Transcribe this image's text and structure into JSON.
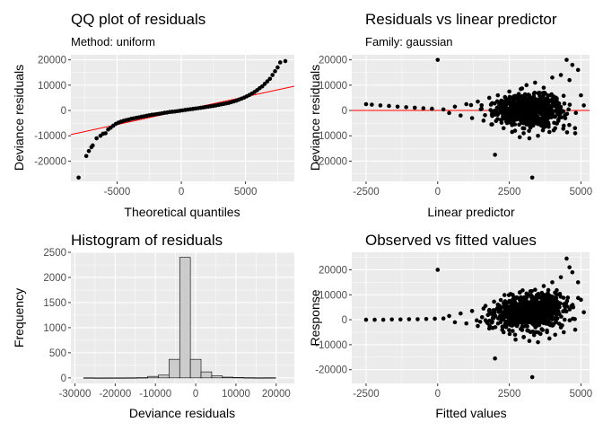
{
  "chart_data": [
    {
      "id": "qq",
      "type": "scatter",
      "title": "QQ plot of residuals",
      "subtitle": "Method: uniform",
      "xlabel": "Theoretical quantiles",
      "ylabel": "Deviance residuals",
      "xlim": [
        -8600,
        8800
      ],
      "ylim": [
        -28000,
        22000
      ],
      "xticks": [
        -5000,
        0,
        5000
      ],
      "xtick_labels": [
        "-5000",
        "0",
        "5000"
      ],
      "xminor": [
        -7500,
        -2500,
        2500,
        7500
      ],
      "yticks": [
        -20000,
        -10000,
        0,
        10000,
        20000
      ],
      "ytick_labels": [
        "-20000",
        "-10000",
        "0",
        "10000",
        "20000"
      ],
      "yminor": [
        -25000,
        -15000,
        -5000,
        5000,
        15000
      ],
      "grid": true,
      "reference_line": {
        "color": "#ff0000",
        "points": [
          [
            -8600,
            -9500
          ],
          [
            8800,
            9600
          ]
        ]
      },
      "points": [
        [
          -8000,
          -26500
        ],
        [
          -7400,
          -18000
        ],
        [
          -7200,
          -16000
        ],
        [
          -7000,
          -14500
        ],
        [
          -6900,
          -13800
        ],
        [
          -6600,
          -11000
        ],
        [
          -6300,
          -10000
        ],
        [
          -6100,
          -9200
        ],
        [
          -5900,
          -9000
        ],
        [
          -5700,
          -7500
        ],
        [
          -5500,
          -6800
        ],
        [
          -5300,
          -6000
        ],
        [
          -5100,
          -5300
        ],
        [
          -4900,
          -4800
        ],
        [
          -4700,
          -4400
        ],
        [
          -4500,
          -4100
        ],
        [
          -4300,
          -3800
        ],
        [
          -4100,
          -3600
        ],
        [
          -3900,
          -3300
        ],
        [
          -3700,
          -3100
        ],
        [
          -3500,
          -2900
        ],
        [
          -3300,
          -2700
        ],
        [
          -3100,
          -2500
        ],
        [
          -2900,
          -2300
        ],
        [
          -2700,
          -2100
        ],
        [
          -2500,
          -1900
        ],
        [
          -2300,
          -1700
        ],
        [
          -2100,
          -1600
        ],
        [
          -1900,
          -1400
        ],
        [
          -1700,
          -1300
        ],
        [
          -1500,
          -1100
        ],
        [
          -1300,
          -900
        ],
        [
          -1100,
          -800
        ],
        [
          -900,
          -600
        ],
        [
          -700,
          -500
        ],
        [
          -500,
          -400
        ],
        [
          -300,
          -250
        ],
        [
          -100,
          -100
        ],
        [
          100,
          50
        ],
        [
          300,
          200
        ],
        [
          500,
          350
        ],
        [
          700,
          500
        ],
        [
          900,
          600
        ],
        [
          1100,
          750
        ],
        [
          1300,
          900
        ],
        [
          1500,
          1050
        ],
        [
          1700,
          1200
        ],
        [
          1900,
          1350
        ],
        [
          2100,
          1500
        ],
        [
          2300,
          1650
        ],
        [
          2500,
          1800
        ],
        [
          2700,
          2000
        ],
        [
          2900,
          2200
        ],
        [
          3100,
          2400
        ],
        [
          3300,
          2600
        ],
        [
          3500,
          2800
        ],
        [
          3700,
          3000
        ],
        [
          3900,
          3300
        ],
        [
          4100,
          3600
        ],
        [
          4300,
          3900
        ],
        [
          4500,
          4300
        ],
        [
          4700,
          4700
        ],
        [
          4900,
          5100
        ],
        [
          5100,
          5600
        ],
        [
          5300,
          6100
        ],
        [
          5500,
          6700
        ],
        [
          5700,
          7300
        ],
        [
          5900,
          8000
        ],
        [
          6100,
          8800
        ],
        [
          6300,
          9500
        ],
        [
          6500,
          10500
        ],
        [
          6700,
          11500
        ],
        [
          6900,
          12500
        ],
        [
          7100,
          14000
        ],
        [
          7300,
          15500
        ],
        [
          7500,
          17000
        ],
        [
          7700,
          19000
        ],
        [
          8100,
          19500
        ]
      ]
    },
    {
      "id": "resid-lp",
      "type": "scatter",
      "title": "Residuals vs linear predictor",
      "subtitle": "Family: gaussian",
      "xlabel": "Linear predictor",
      "ylabel": "Deviance residuals",
      "xlim": [
        -3000,
        5300
      ],
      "ylim": [
        -28000,
        22000
      ],
      "xticks": [
        -2500,
        0,
        2500,
        5000
      ],
      "xtick_labels": [
        "-2500",
        "0",
        "2500",
        "5000"
      ],
      "xminor": [
        -1250,
        1250,
        3750
      ],
      "yticks": [
        -20000,
        -10000,
        0,
        10000,
        20000
      ],
      "ytick_labels": [
        "-20000",
        "-10000",
        "0",
        "10000",
        "20000"
      ],
      "yminor": [
        -25000,
        -15000,
        -5000,
        5000,
        15000
      ],
      "grid": true,
      "reference_line": {
        "color": "#ff0000",
        "points": [
          [
            -3000,
            0
          ],
          [
            5300,
            0
          ]
        ]
      },
      "points": [
        [
          -2500,
          2500
        ],
        [
          -2300,
          2300
        ],
        [
          -2000,
          2000
        ],
        [
          -1700,
          1800
        ],
        [
          -1400,
          1500
        ],
        [
          -1100,
          1300
        ],
        [
          -800,
          1100
        ],
        [
          -500,
          900
        ],
        [
          -200,
          700
        ],
        [
          0,
          20000
        ],
        [
          200,
          400
        ],
        [
          400,
          -1000
        ],
        [
          600,
          1500
        ],
        [
          800,
          -2000
        ],
        [
          1000,
          2500
        ],
        [
          1200,
          -3000
        ],
        [
          1400,
          3500
        ],
        [
          1600,
          -4000
        ],
        [
          1800,
          5000
        ],
        [
          1900,
          -5500
        ],
        [
          2000,
          -17500
        ],
        [
          2100,
          6000
        ],
        [
          2300,
          -7000
        ],
        [
          2500,
          7500
        ],
        [
          2700,
          -8000
        ],
        [
          2900,
          8500
        ],
        [
          3000,
          -9000
        ],
        [
          3100,
          10000
        ],
        [
          3200,
          -11000
        ],
        [
          3300,
          -26500
        ],
        [
          3400,
          11000
        ],
        [
          3500,
          -10000
        ],
        [
          3700,
          9000
        ],
        [
          3900,
          -8500
        ],
        [
          4000,
          13000
        ],
        [
          4100,
          -7000
        ],
        [
          4300,
          14000
        ],
        [
          4400,
          -6000
        ],
        [
          4500,
          20000
        ],
        [
          4600,
          12000
        ],
        [
          4700,
          18000
        ],
        [
          4800,
          -9000
        ],
        [
          4900,
          16000
        ],
        [
          5000,
          6000
        ],
        [
          5100,
          2000
        ]
      ],
      "cloud": {
        "x_center": 3200,
        "x_spread": 1300,
        "y_spread": 4500,
        "count": 900
      }
    },
    {
      "id": "hist",
      "type": "bar",
      "title": "Histogram of residuals",
      "xlabel": "Deviance residuals",
      "ylabel": "Frequency",
      "xlim": [
        -31000,
        24500
      ],
      "ylim": [
        -110,
        2500
      ],
      "xticks": [
        -30000,
        -20000,
        -10000,
        0,
        10000,
        20000
      ],
      "xtick_labels": [
        "-30000",
        "-20000",
        "-10000",
        "0",
        "10000",
        "20000"
      ],
      "xminor": [
        -25000,
        -15000,
        -5000,
        5000,
        15000
      ],
      "yticks": [
        0,
        500,
        1000,
        1500,
        2000,
        2500
      ],
      "ytick_labels": [
        "0",
        "500",
        "1000",
        "1500",
        "2000",
        "2500"
      ],
      "yminor": [
        250,
        750,
        1250,
        1750,
        2250
      ],
      "grid": true,
      "bin_width": 2650,
      "bins": [
        {
          "x": -26500,
          "count": 2
        },
        {
          "x": -23850,
          "count": 0
        },
        {
          "x": -21200,
          "count": 1
        },
        {
          "x": -18550,
          "count": 1
        },
        {
          "x": -15900,
          "count": 2
        },
        {
          "x": -13250,
          "count": 5
        },
        {
          "x": -10600,
          "count": 30
        },
        {
          "x": -7950,
          "count": 55
        },
        {
          "x": -5300,
          "count": 370
        },
        {
          "x": -2650,
          "count": 2400
        },
        {
          "x": 0,
          "count": 370
        },
        {
          "x": 2650,
          "count": 120
        },
        {
          "x": 5300,
          "count": 40
        },
        {
          "x": 7950,
          "count": 15
        },
        {
          "x": 10600,
          "count": 8
        },
        {
          "x": 13250,
          "count": 4
        },
        {
          "x": 15900,
          "count": 2
        },
        {
          "x": 18550,
          "count": 3
        }
      ]
    },
    {
      "id": "obs-fit",
      "type": "scatter",
      "title": "Observed vs fitted values",
      "xlabel": "Fitted values",
      "ylabel": "Response",
      "xlim": [
        -3000,
        5300
      ],
      "ylim": [
        -25500,
        27000
      ],
      "xticks": [
        -2500,
        0,
        2500,
        5000
      ],
      "xtick_labels": [
        "-2500",
        "0",
        "2500",
        "5000"
      ],
      "xminor": [
        -1250,
        1250,
        3750
      ],
      "yticks": [
        -20000,
        -10000,
        0,
        10000,
        20000
      ],
      "ytick_labels": [
        "-20000",
        "-10000",
        "0",
        "10000",
        "20000"
      ],
      "yminor": [
        -15000,
        -5000,
        5000,
        15000,
        25000
      ],
      "grid": true,
      "points": [
        [
          -2500,
          0
        ],
        [
          -2200,
          0
        ],
        [
          -1900,
          0
        ],
        [
          -1600,
          100
        ],
        [
          -1300,
          100
        ],
        [
          -1000,
          200
        ],
        [
          -700,
          200
        ],
        [
          -400,
          300
        ],
        [
          -100,
          400
        ],
        [
          0,
          20000
        ],
        [
          200,
          500
        ],
        [
          400,
          1500
        ],
        [
          600,
          -1000
        ],
        [
          800,
          2500
        ],
        [
          1000,
          -1500
        ],
        [
          1200,
          3500
        ],
        [
          1400,
          -2500
        ],
        [
          1600,
          4500
        ],
        [
          1800,
          -3500
        ],
        [
          2000,
          -15500
        ],
        [
          2100,
          6000
        ],
        [
          2300,
          -5000
        ],
        [
          2500,
          7500
        ],
        [
          2700,
          -6000
        ],
        [
          2900,
          9000
        ],
        [
          3000,
          -7000
        ],
        [
          3100,
          10500
        ],
        [
          3200,
          -8500
        ],
        [
          3300,
          -23000
        ],
        [
          3400,
          12000
        ],
        [
          3500,
          -9000
        ],
        [
          3700,
          13500
        ],
        [
          3900,
          -7500
        ],
        [
          4000,
          15000
        ],
        [
          4100,
          -6000
        ],
        [
          4300,
          17000
        ],
        [
          4400,
          -5000
        ],
        [
          4500,
          24500
        ],
        [
          4600,
          21000
        ],
        [
          4700,
          19000
        ],
        [
          4800,
          -4000
        ],
        [
          4900,
          15000
        ],
        [
          5000,
          8000
        ],
        [
          5100,
          3000
        ]
      ],
      "cloud": {
        "x_center": 3200,
        "x_spread": 1300,
        "y_spread": 5000,
        "count": 900,
        "slope": 1
      }
    }
  ]
}
